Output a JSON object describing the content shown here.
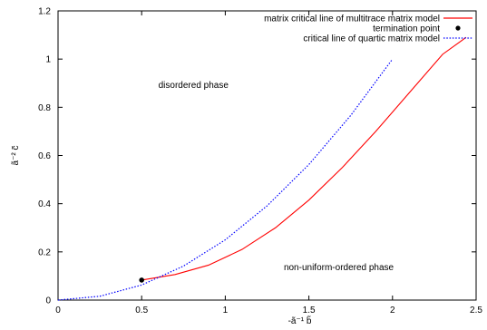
{
  "chart_data": {
    "type": "line",
    "xlabel": "-ã⁻¹ b̃",
    "ylabel": "ã⁻² c̃",
    "xlim": [
      0,
      2.5
    ],
    "ylim": [
      0,
      1.2
    ],
    "xticks": [
      "0",
      "0.5",
      "1",
      "1.5",
      "2",
      "2.5"
    ],
    "yticks": [
      "0",
      "0.2",
      "0.4",
      "0.6",
      "0.8",
      "1",
      "1.2"
    ],
    "grid": false,
    "legend_position": "top-right",
    "series": [
      {
        "name": "matrix critical line of multitrace matrix model",
        "color": "#ff0000",
        "style": "solid",
        "x": [
          0.5,
          0.7,
          0.9,
          1.1,
          1.3,
          1.5,
          1.7,
          1.9,
          2.1,
          2.3,
          2.44
        ],
        "y": [
          0.083,
          0.106,
          0.145,
          0.21,
          0.3,
          0.415,
          0.55,
          0.7,
          0.86,
          1.02,
          1.09
        ]
      },
      {
        "name": "termination point",
        "color": "#000000",
        "style": "point",
        "x": [
          0.5
        ],
        "y": [
          0.083
        ]
      },
      {
        "name": "critical line of quartic matrix model",
        "color": "#0000ff",
        "style": "dotted",
        "x": [
          0,
          0.25,
          0.5,
          0.75,
          1.0,
          1.25,
          1.5,
          1.75,
          2.0
        ],
        "y": [
          0,
          0.016,
          0.0625,
          0.141,
          0.25,
          0.391,
          0.5625,
          0.766,
          1.0
        ]
      }
    ],
    "annotations": [
      {
        "text": "disordered phase",
        "x": 0.6,
        "y": 0.88
      },
      {
        "text": "non-uniform-ordered phase",
        "x": 1.35,
        "y": 0.125
      }
    ]
  }
}
